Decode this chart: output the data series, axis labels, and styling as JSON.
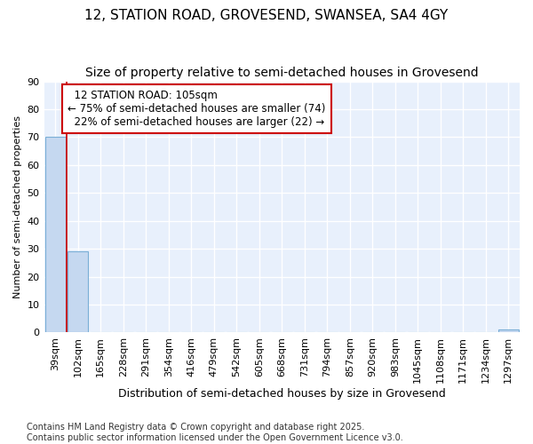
{
  "title1": "12, STATION ROAD, GROVESEND, SWANSEA, SA4 4GY",
  "title2": "Size of property relative to semi-detached houses in Grovesend",
  "xlabel": "Distribution of semi-detached houses by size in Grovesend",
  "ylabel": "Number of semi-detached properties",
  "categories": [
    "39sqm",
    "102sqm",
    "165sqm",
    "228sqm",
    "291sqm",
    "354sqm",
    "416sqm",
    "479sqm",
    "542sqm",
    "605sqm",
    "668sqm",
    "731sqm",
    "794sqm",
    "857sqm",
    "920sqm",
    "983sqm",
    "1045sqm",
    "1108sqm",
    "1171sqm",
    "1234sqm",
    "1297sqm"
  ],
  "values": [
    70,
    29,
    0,
    0,
    0,
    0,
    0,
    0,
    0,
    0,
    0,
    0,
    0,
    0,
    0,
    0,
    0,
    0,
    0,
    0,
    1
  ],
  "bar_color": "#c5d8f0",
  "bar_edge_color": "#7aaed6",
  "ylim": [
    0,
    90
  ],
  "vline_x": 0.5,
  "property_label": "12 STATION ROAD: 105sqm",
  "pct_smaller": 75,
  "count_smaller": 74,
  "pct_larger": 22,
  "count_larger": 22,
  "vline_color": "#cc0000",
  "annotation_box_color": "#cc0000",
  "plot_bg_color": "#e8f0fc",
  "fig_bg_color": "#ffffff",
  "grid_color": "#ffffff",
  "footer": "Contains HM Land Registry data © Crown copyright and database right 2025.\nContains public sector information licensed under the Open Government Licence v3.0.",
  "title1_fontsize": 11,
  "title2_fontsize": 10,
  "xlabel_fontsize": 9,
  "ylabel_fontsize": 8,
  "tick_fontsize": 8,
  "annotation_fontsize": 8.5,
  "footer_fontsize": 7
}
